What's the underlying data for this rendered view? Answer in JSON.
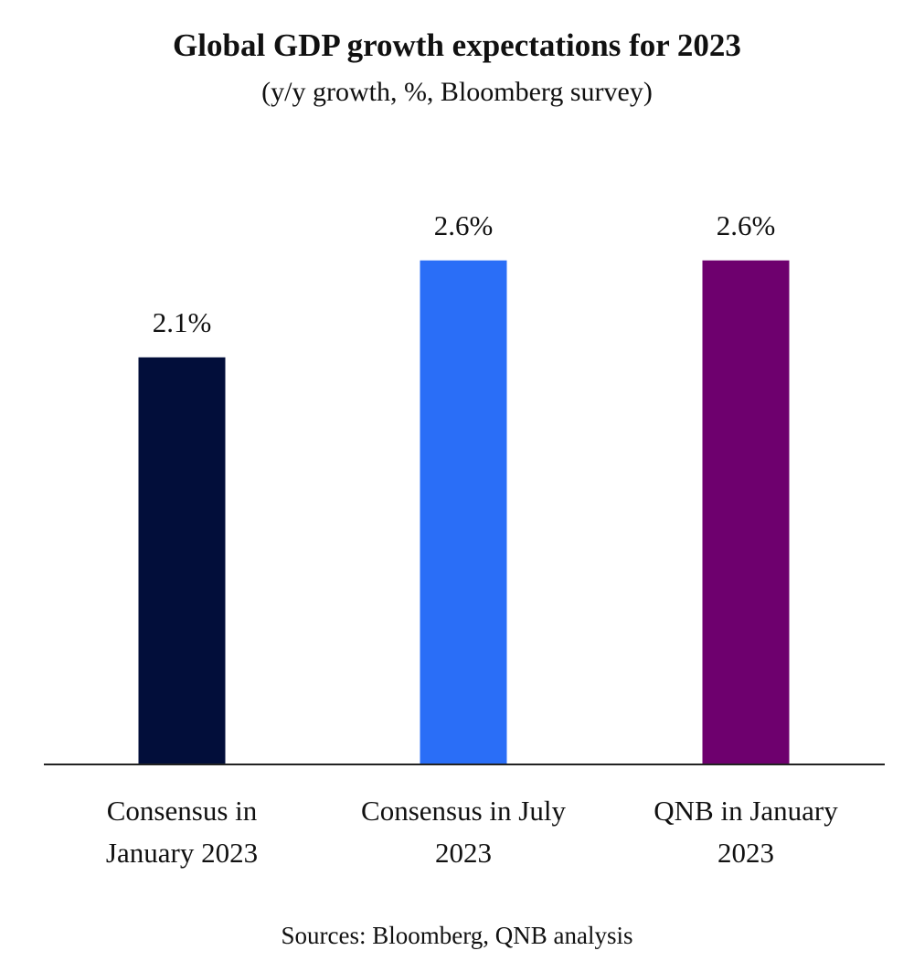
{
  "chart_data": {
    "type": "bar",
    "title": "Global GDP growth expectations for 2023",
    "subtitle": "(y/y growth, %, Bloomberg survey)",
    "categories": [
      [
        "Consensus in",
        "January 2023"
      ],
      [
        "Consensus in July",
        "2023"
      ],
      [
        "QNB in January",
        "2023"
      ]
    ],
    "values": [
      2.1,
      2.6,
      2.6
    ],
    "data_labels": [
      "2.1%",
      "2.6%",
      "2.6%"
    ],
    "colors": [
      "#020E3A",
      "#2A6EF7",
      "#6E006E"
    ],
    "xlabel": "",
    "ylabel": "",
    "ylim": [
      0,
      3.0
    ],
    "grid": false,
    "legend": "none"
  },
  "source": "Sources: Bloomberg, QNB analysis"
}
